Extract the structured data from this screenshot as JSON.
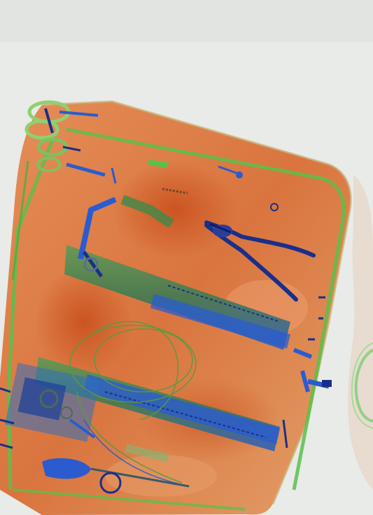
{
  "image": {
    "kind": "x-ray baggage scan",
    "palette": {
      "background": "#e8ebe8",
      "organic": "#d9692f",
      "organic_light": "#e8a06a",
      "inorganic": "#6fbf4a",
      "metal": "#2a5ccf",
      "dense_metal": "#1a2f8a"
    },
    "objects": [
      "bag",
      "handle",
      "pliers",
      "left-frame-rail",
      "right-frame-rail",
      "bottom-rail",
      "cable-coil",
      "small-ring",
      "zipper-pulls",
      "clamp-mechanism",
      "adjacent-bag-edge"
    ]
  }
}
